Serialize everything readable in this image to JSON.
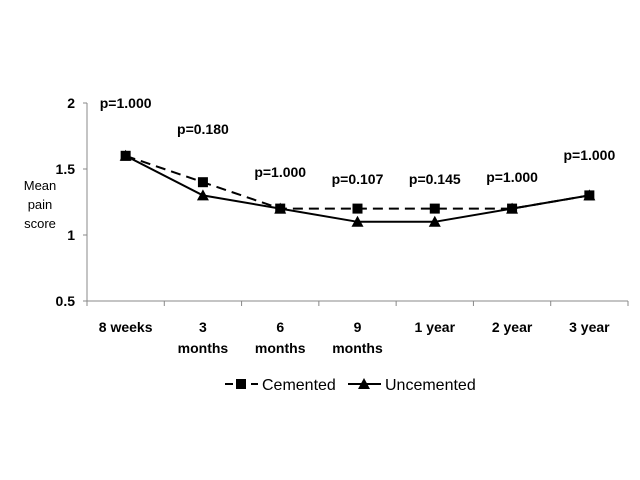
{
  "chart_data": {
    "type": "line",
    "title": "",
    "xlabel": "",
    "ylabel": "Mean pain score",
    "ylabel_lines": [
      "Mean",
      "pain",
      "score"
    ],
    "categories": [
      [
        "8 weeks"
      ],
      [
        "3",
        "months"
      ],
      [
        "6",
        "months"
      ],
      [
        "9",
        "months"
      ],
      [
        "1 year"
      ],
      [
        "2 year"
      ],
      [
        "3 year"
      ]
    ],
    "ylim": [
      0.5,
      2
    ],
    "yticks": [
      "0.5",
      "1",
      "1.5",
      "2"
    ],
    "grid": false,
    "series": [
      {
        "name": "Cemented",
        "marker": "square",
        "dash": true,
        "values": [
          1.6,
          1.4,
          1.2,
          1.2,
          1.2,
          1.2,
          1.3
        ]
      },
      {
        "name": "Uncemented",
        "marker": "triangle",
        "dash": false,
        "values": [
          1.6,
          1.3,
          1.2,
          1.1,
          1.1,
          1.2,
          1.3
        ]
      }
    ],
    "annotations": [
      "p=1.000",
      "p=0.180",
      "p=1.000",
      "p=0.107",
      "p=0.145",
      "p=1.000",
      "p=1.000"
    ],
    "legend_position": "bottom",
    "color": "#000000"
  }
}
